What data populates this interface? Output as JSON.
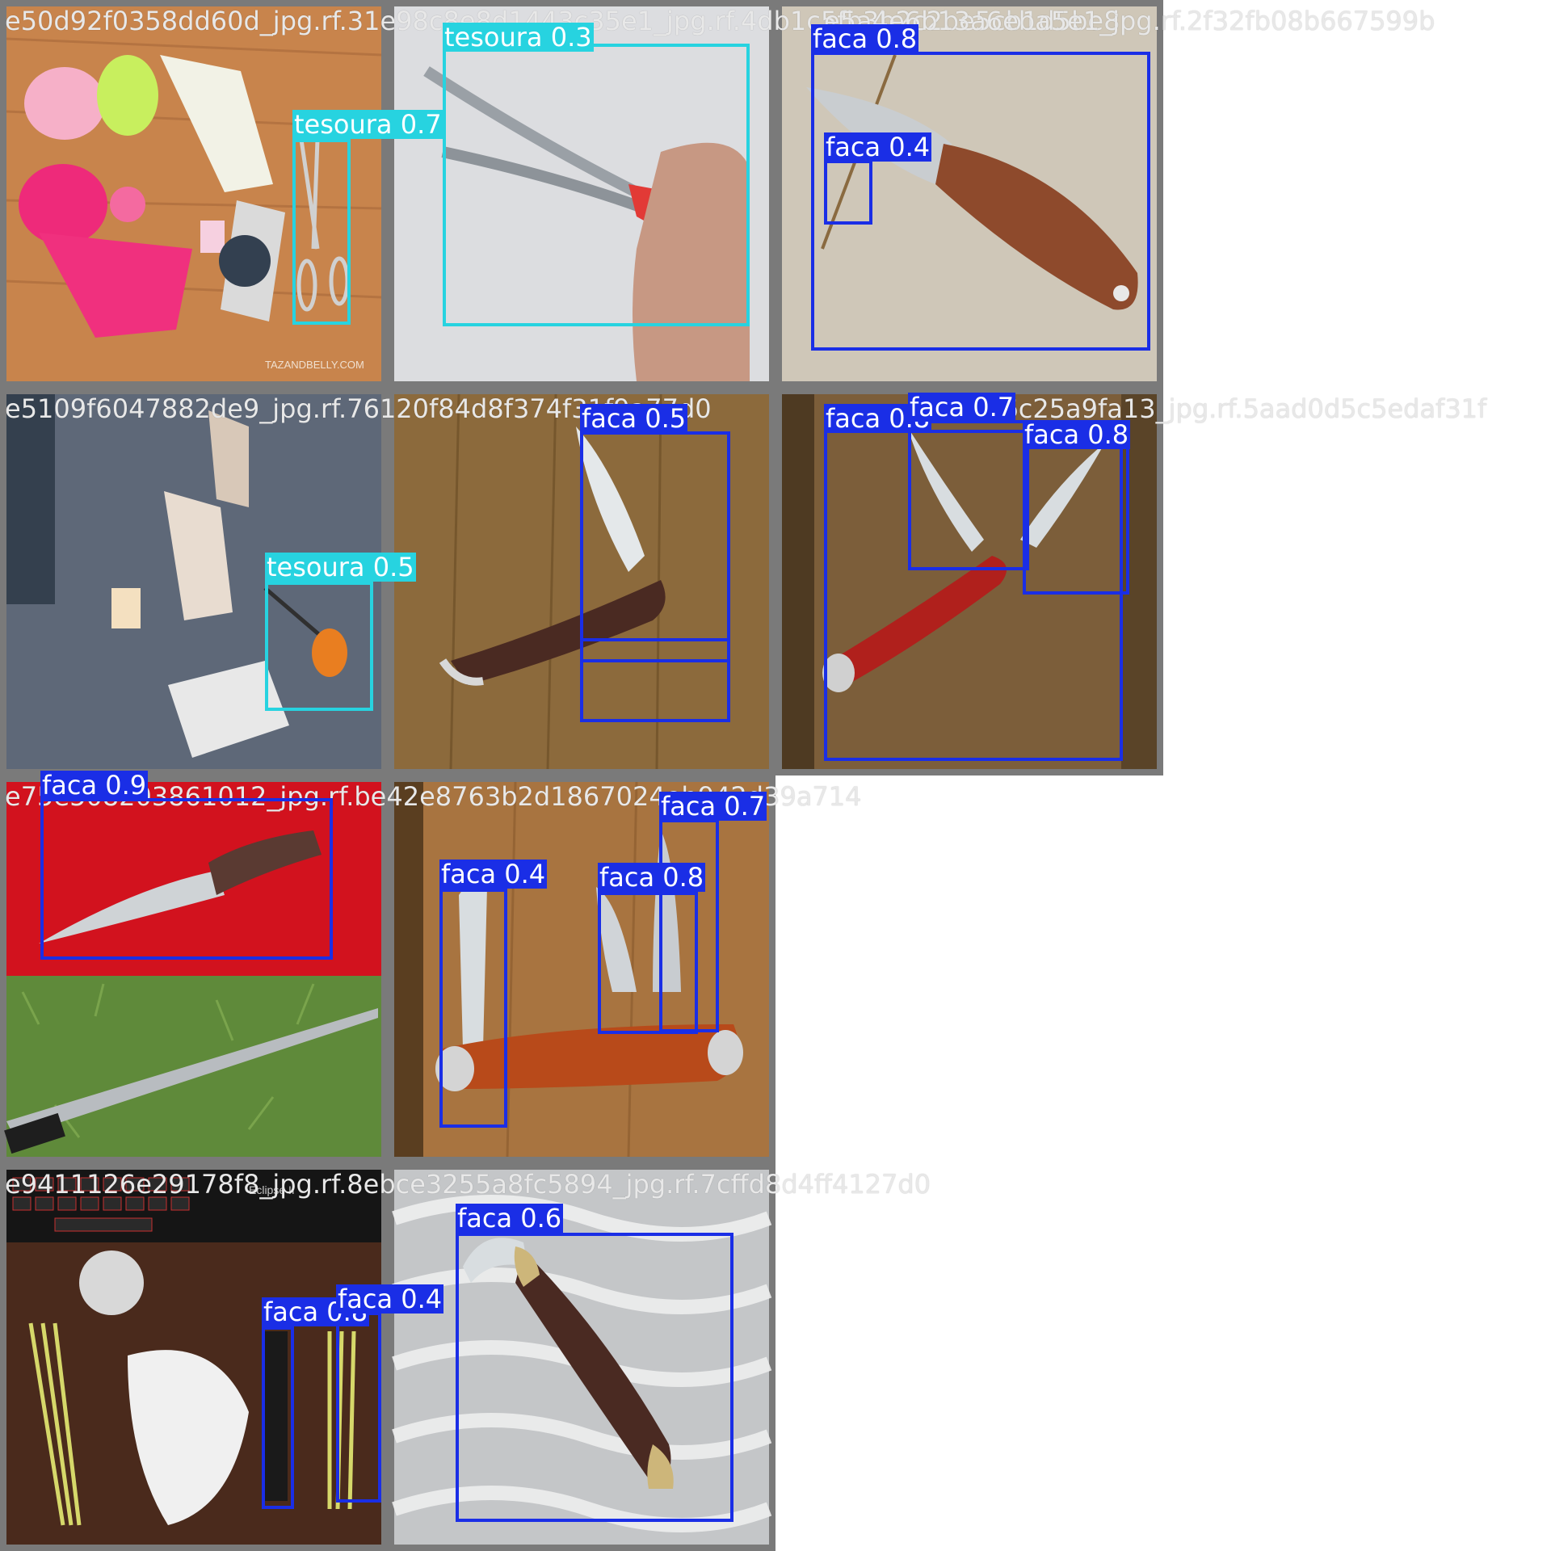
{
  "tiles": [
    {
      "filename": "e50d92f0358dd60d_jpg.rf.31e98c8e8d1443c35e1_jpg.rf.4db1c5fb3b2c2be5cb1d5be8",
      "detections": [
        {
          "label": "tesoura 0.7",
          "class": "tesoura"
        }
      ]
    },
    {
      "filename": "",
      "detections": [
        {
          "label": "tesoura 0.3",
          "class": "tesoura"
        }
      ]
    },
    {
      "filename": "e5a4e6b13a6eba5e1_jpg.rf.2f32fb08b667599b",
      "detections": [
        {
          "label": "faca 0.8",
          "class": "faca"
        },
        {
          "label": "faca 0.4",
          "class": "faca"
        }
      ]
    },
    {
      "filename": "e5109f6047882de9_jpg.rf.76120f84d8f374f31f9a77d0",
      "detections": [
        {
          "label": "tesoura 0.5",
          "class": "tesoura"
        }
      ]
    },
    {
      "filename": "",
      "detections": [
        {
          "label": "faca 0.5",
          "class": "faca"
        }
      ]
    },
    {
      "filename": "e58a06c25a9fa13_jpg.rf.5aad0d5c5edaf31f",
      "detections": [
        {
          "label": "faca 0.8",
          "class": "faca"
        },
        {
          "label": "faca 0.7",
          "class": "faca"
        },
        {
          "label": "faca 0.8",
          "class": "faca"
        }
      ]
    },
    {
      "filename": "e75e508203861012_jpg.rf.be42e8763b2d1867024eb942d39a714",
      "detections": [
        {
          "label": "faca 0.9",
          "class": "faca"
        }
      ]
    },
    {
      "filename": "",
      "detections": [
        {
          "label": "faca 0.4",
          "class": "faca"
        },
        {
          "label": "faca 0.8",
          "class": "faca"
        },
        {
          "label": "faca 0.7",
          "class": "faca"
        }
      ]
    },
    {
      "filename": "e9411126e29178f8_jpg.rf.8ebce3255a8fc5894_jpg.rf.7cffd8d4ff4127d0",
      "detections": [
        {
          "label": "faca 0.8",
          "class": "faca"
        },
        {
          "label": "faca 0.4",
          "class": "faca"
        }
      ]
    },
    {
      "filename": "",
      "detections": [
        {
          "label": "faca 0.6",
          "class": "faca"
        }
      ]
    }
  ],
  "photo_text": {
    "watermark": "TAZANDBELLY.COM",
    "keyboard_brand": "Eclipse II"
  },
  "colors": {
    "faca": "#1a2ee6",
    "tesoura": "#27d3e0",
    "grid_border": "#7a7a7a",
    "filename_text": "#e8e8e8"
  },
  "icons": [
    "scissors-photo",
    "knife-photo"
  ]
}
